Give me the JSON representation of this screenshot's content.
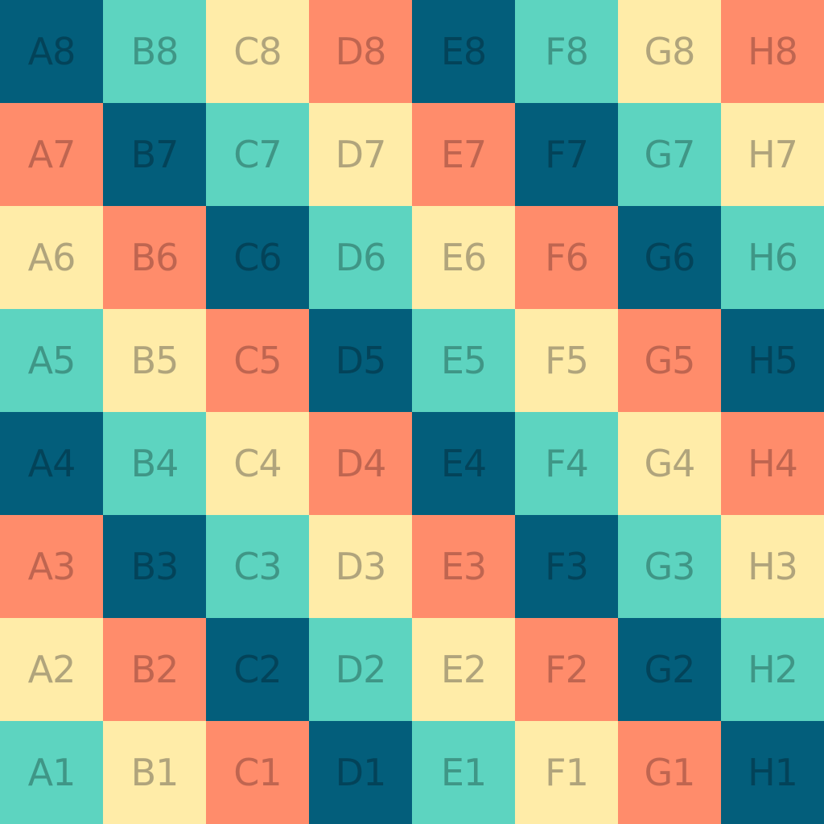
{
  "palette": [
    {
      "name": "navy",
      "bg": "#035e7b",
      "fg": "#034359"
    },
    {
      "name": "teal",
      "bg": "#5dd4c0",
      "fg": "#3f9686"
    },
    {
      "name": "cream",
      "bg": "#ffeca8",
      "fg": "#b0a47c"
    },
    {
      "name": "salmon",
      "bg": "#ff8c6b",
      "fg": "#bf6550"
    }
  ],
  "board": {
    "rows": [
      [
        {
          "label": "A8",
          "color": 0
        },
        {
          "label": "B8",
          "color": 1
        },
        {
          "label": "C8",
          "color": 2
        },
        {
          "label": "D8",
          "color": 3
        },
        {
          "label": "E8",
          "color": 0
        },
        {
          "label": "F8",
          "color": 1
        },
        {
          "label": "G8",
          "color": 2
        },
        {
          "label": "H8",
          "color": 3
        }
      ],
      [
        {
          "label": "A7",
          "color": 3
        },
        {
          "label": "B7",
          "color": 0
        },
        {
          "label": "C7",
          "color": 1
        },
        {
          "label": "D7",
          "color": 2
        },
        {
          "label": "E7",
          "color": 3
        },
        {
          "label": "F7",
          "color": 0
        },
        {
          "label": "G7",
          "color": 1
        },
        {
          "label": "H7",
          "color": 2
        }
      ],
      [
        {
          "label": "A6",
          "color": 2
        },
        {
          "label": "B6",
          "color": 3
        },
        {
          "label": "C6",
          "color": 0
        },
        {
          "label": "D6",
          "color": 1
        },
        {
          "label": "E6",
          "color": 2
        },
        {
          "label": "F6",
          "color": 3
        },
        {
          "label": "G6",
          "color": 0
        },
        {
          "label": "H6",
          "color": 1
        }
      ],
      [
        {
          "label": "A5",
          "color": 1
        },
        {
          "label": "B5",
          "color": 2
        },
        {
          "label": "C5",
          "color": 3
        },
        {
          "label": "D5",
          "color": 0
        },
        {
          "label": "E5",
          "color": 1
        },
        {
          "label": "F5",
          "color": 2
        },
        {
          "label": "G5",
          "color": 3
        },
        {
          "label": "H5",
          "color": 0
        }
      ],
      [
        {
          "label": "A4",
          "color": 0
        },
        {
          "label": "B4",
          "color": 1
        },
        {
          "label": "C4",
          "color": 2
        },
        {
          "label": "D4",
          "color": 3
        },
        {
          "label": "E4",
          "color": 0
        },
        {
          "label": "F4",
          "color": 1
        },
        {
          "label": "G4",
          "color": 2
        },
        {
          "label": "H4",
          "color": 3
        }
      ],
      [
        {
          "label": "A3",
          "color": 3
        },
        {
          "label": "B3",
          "color": 0
        },
        {
          "label": "C3",
          "color": 1
        },
        {
          "label": "D3",
          "color": 2
        },
        {
          "label": "E3",
          "color": 3
        },
        {
          "label": "F3",
          "color": 0
        },
        {
          "label": "G3",
          "color": 1
        },
        {
          "label": "H3",
          "color": 2
        }
      ],
      [
        {
          "label": "A2",
          "color": 2
        },
        {
          "label": "B2",
          "color": 3
        },
        {
          "label": "C2",
          "color": 0
        },
        {
          "label": "D2",
          "color": 1
        },
        {
          "label": "E2",
          "color": 2
        },
        {
          "label": "F2",
          "color": 3
        },
        {
          "label": "G2",
          "color": 0
        },
        {
          "label": "H2",
          "color": 1
        }
      ],
      [
        {
          "label": "A1",
          "color": 1
        },
        {
          "label": "B1",
          "color": 2
        },
        {
          "label": "C1",
          "color": 3
        },
        {
          "label": "D1",
          "color": 0
        },
        {
          "label": "E1",
          "color": 1
        },
        {
          "label": "F1",
          "color": 2
        },
        {
          "label": "G1",
          "color": 3
        },
        {
          "label": "H1",
          "color": 0
        }
      ]
    ]
  }
}
